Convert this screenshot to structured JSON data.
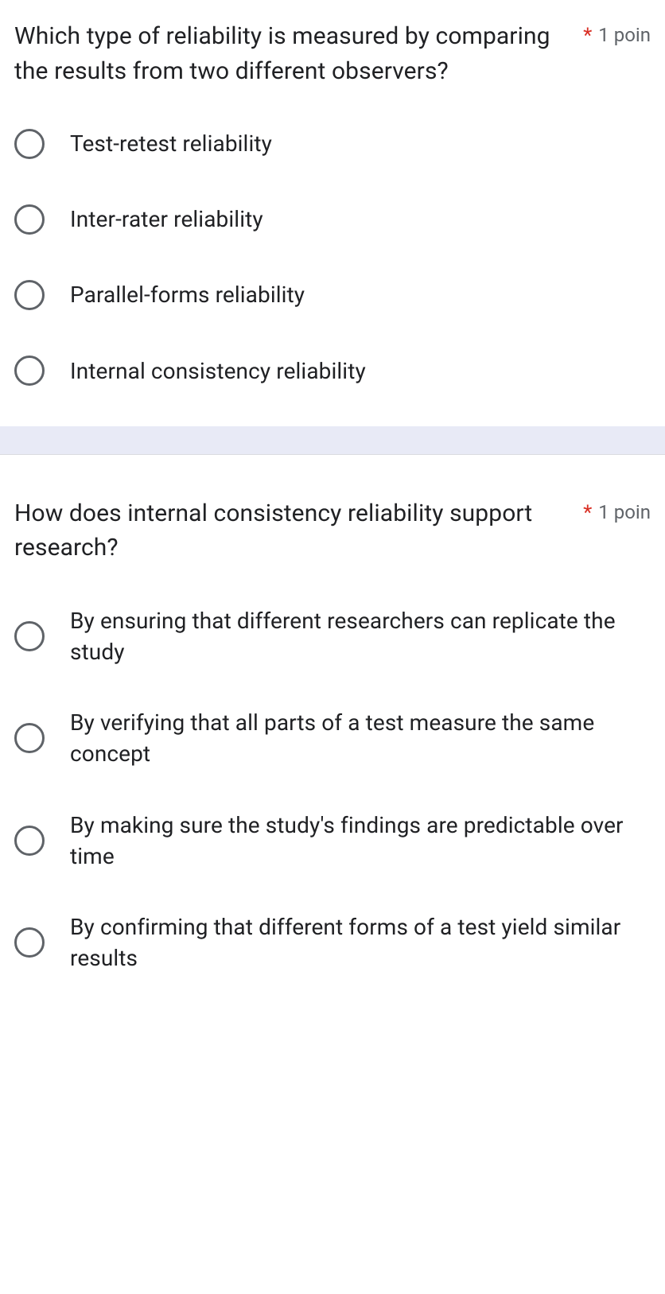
{
  "questions": [
    {
      "text": "Which type of reliability is measured by comparing the results from two different observers?",
      "required": "*",
      "points": "1 poin",
      "options": [
        "Test-retest reliability",
        "Inter-rater reliability",
        "Parallel-forms reliability",
        "Internal consistency reliability"
      ]
    },
    {
      "text": "How does internal consistency reliability support research?",
      "required": "*",
      "points": "1 poin",
      "options": [
        "By ensuring that different researchers can replicate the study",
        "By verifying that all parts of a test measure the same concept",
        "By making sure the study's findings are predictable over time",
        "By confirming that different forms of a test yield similar results"
      ]
    }
  ],
  "colors": {
    "text": "#202124",
    "required": "#d93025",
    "muted": "#5f6368",
    "divider_bg": "#e8eaf6",
    "divider_border": "#dadce0",
    "radio_border": "#5f6368"
  }
}
